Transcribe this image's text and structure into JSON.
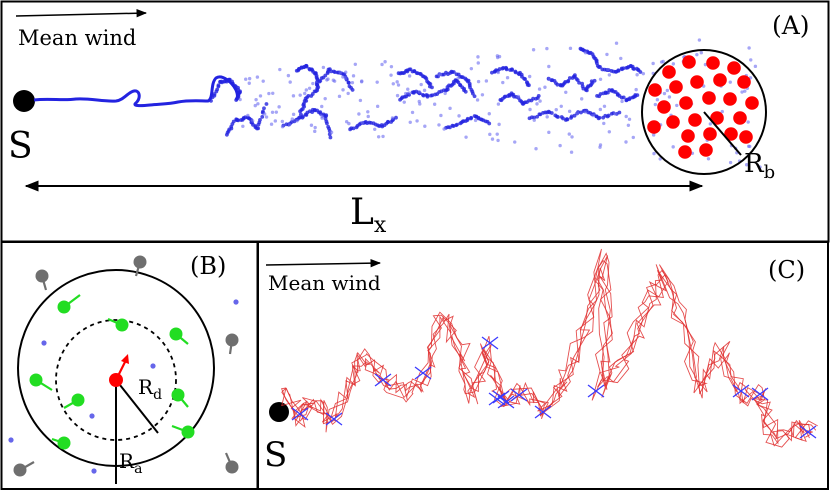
{
  "panelA": {
    "tag": "(A)",
    "wind_label": "Mean wind",
    "source_label": "S",
    "length_label": "L",
    "length_sub": "x",
    "radius_label": "R",
    "radius_sub": "b"
  },
  "panelB": {
    "tag": "(B)",
    "outer_label": "R",
    "outer_sub": "a",
    "inner_label": "R",
    "inner_sub": "d"
  },
  "panelC": {
    "tag": "(C)",
    "wind_label": "Mean wind",
    "source_label": "S"
  },
  "colors": {
    "plume": "#2323e0",
    "particle_fill": "#6b6bf0",
    "target": "#ff0000",
    "agent_green": "#22dd22",
    "agent_gray": "#6f6f6f",
    "trajectory": "#e03030",
    "hit_marker": "#3a3aff",
    "frame": "#000000"
  }
}
